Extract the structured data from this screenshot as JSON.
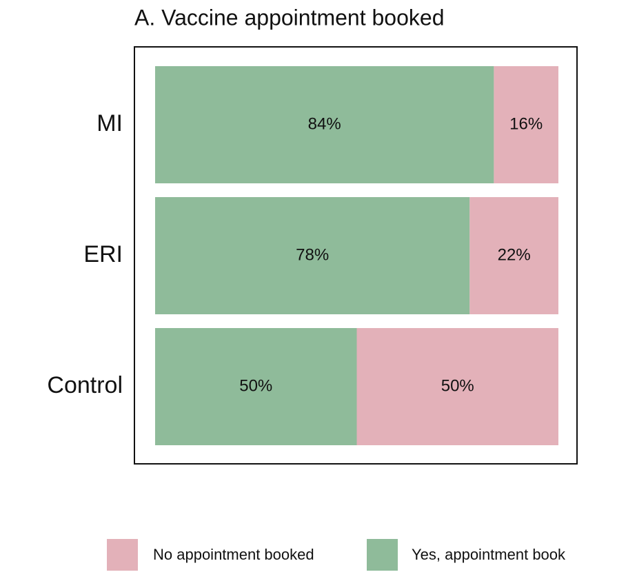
{
  "chart_data": {
    "type": "stacked-bar-horizontal",
    "title": "A. Vaccine appointment booked",
    "categories": [
      "MI",
      "ERI",
      "Control"
    ],
    "series": [
      {
        "name": "Yes, appointment book",
        "color": "#8fbb9a",
        "values": [
          84,
          78,
          50
        ],
        "value_labels": [
          "84%",
          "78%",
          "50%"
        ]
      },
      {
        "name": "No appointment booked",
        "color": "#e3b1b9",
        "values": [
          16,
          22,
          50
        ],
        "value_labels": [
          "16%",
          "22%",
          "50%"
        ]
      }
    ]
  }
}
